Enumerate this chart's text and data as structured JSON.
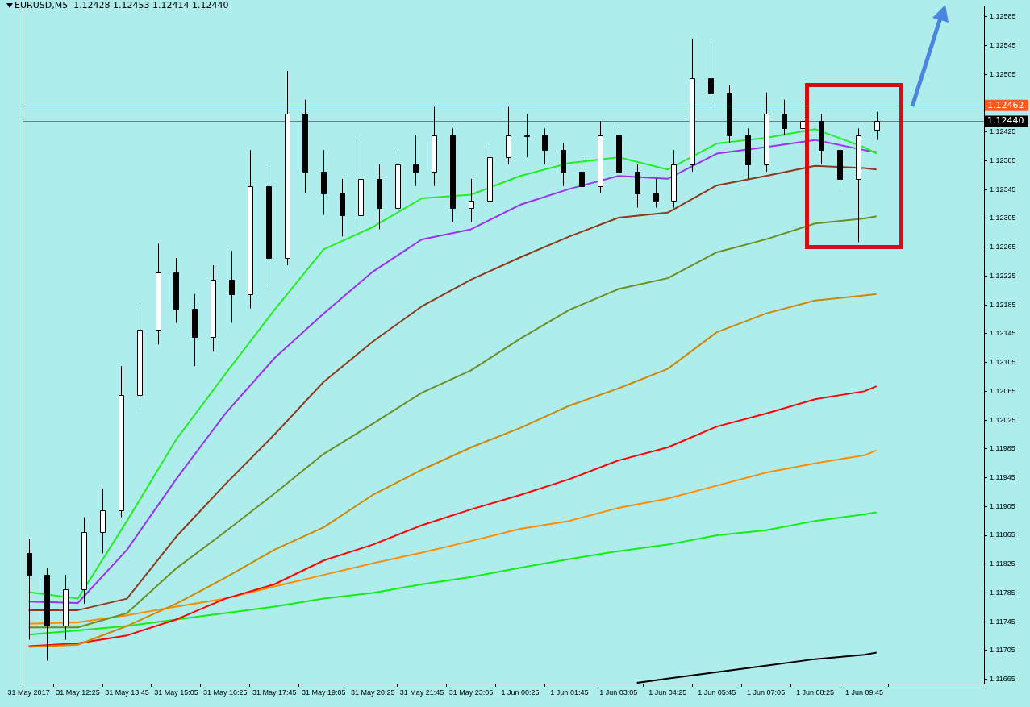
{
  "chart_data": {
    "type": "candlestick",
    "title": "EURUSD,M5  1.12428 1.12453 1.12414 1.12440",
    "x": [
      "2017-05-31T11:05",
      "2017-05-31T11:35",
      "2017-05-31T12:05",
      "2017-05-31T12:35",
      "2017-05-31T13:05",
      "2017-05-31T13:35",
      "2017-05-31T14:05",
      "2017-05-31T14:35",
      "2017-05-31T15:05",
      "2017-05-31T15:35",
      "2017-05-31T16:05",
      "2017-05-31T16:35",
      "2017-05-31T17:05",
      "2017-05-31T17:35",
      "2017-05-31T18:05",
      "2017-05-31T18:35",
      "2017-05-31T19:05",
      "2017-05-31T19:35",
      "2017-05-31T20:05",
      "2017-05-31T20:35",
      "2017-05-31T21:05",
      "2017-05-31T21:35",
      "2017-05-31T22:05",
      "2017-05-31T22:35",
      "2017-05-31T23:05",
      "2017-05-31T23:35",
      "2017-06-01T00:05",
      "2017-06-01T00:35",
      "2017-06-01T01:05",
      "2017-06-01T01:35",
      "2017-06-01T02:05",
      "2017-06-01T02:35",
      "2017-06-01T03:05",
      "2017-06-01T03:35",
      "2017-06-01T04:05",
      "2017-06-01T04:35",
      "2017-06-01T05:05",
      "2017-06-01T05:35",
      "2017-06-01T06:05",
      "2017-06-01T06:35",
      "2017-06-01T07:05",
      "2017-06-01T07:35",
      "2017-06-01T08:05",
      "2017-06-01T08:35",
      "2017-06-01T09:05",
      "2017-06-01T09:35",
      "2017-06-01T10:05"
    ],
    "ohlc": [
      [
        1.1184,
        1.1186,
        1.1172,
        1.1181
      ],
      [
        1.1181,
        1.1182,
        1.11691,
        1.1174
      ],
      [
        1.1174,
        1.1181,
        1.1172,
        1.1179
      ],
      [
        1.1179,
        1.1189,
        1.1177,
        1.1187
      ],
      [
        1.1187,
        1.1193,
        1.1184,
        1.119
      ],
      [
        1.119,
        1.121,
        1.1189,
        1.1206
      ],
      [
        1.1206,
        1.1218,
        1.1204,
        1.1215
      ],
      [
        1.1215,
        1.1227,
        1.1213,
        1.1223
      ],
      [
        1.1223,
        1.1225,
        1.1216,
        1.1218
      ],
      [
        1.1218,
        1.122,
        1.121,
        1.1214
      ],
      [
        1.1214,
        1.1224,
        1.1212,
        1.1222
      ],
      [
        1.1222,
        1.1226,
        1.1216,
        1.122
      ],
      [
        1.122,
        1.124,
        1.1218,
        1.1235
      ],
      [
        1.1235,
        1.1238,
        1.12211,
        1.1225
      ],
      [
        1.1225,
        1.1251,
        1.1224,
        1.1245
      ],
      [
        1.1245,
        1.1247,
        1.1234,
        1.1237
      ],
      [
        1.1237,
        1.124,
        1.1231,
        1.1234
      ],
      [
        1.1234,
        1.1236,
        1.1228,
        1.1231
      ],
      [
        1.1231,
        1.12415,
        1.1229,
        1.1236
      ],
      [
        1.1236,
        1.1238,
        1.1229,
        1.1232
      ],
      [
        1.1232,
        1.124,
        1.1231,
        1.1238
      ],
      [
        1.1238,
        1.1242,
        1.1235,
        1.1237
      ],
      [
        1.1237,
        1.1246,
        1.1235,
        1.1242
      ],
      [
        1.1242,
        1.1243,
        1.123,
        1.1232
      ],
      [
        1.1232,
        1.1236,
        1.123,
        1.1233
      ],
      [
        1.1233,
        1.1241,
        1.1232,
        1.1239
      ],
      [
        1.1239,
        1.1246,
        1.1238,
        1.1242
      ],
      [
        1.1242,
        1.1245,
        1.1239,
        1.1242
      ],
      [
        1.1242,
        1.1243,
        1.1238,
        1.124
      ],
      [
        1.124,
        1.1241,
        1.1235,
        1.1237
      ],
      [
        1.1237,
        1.1239,
        1.1234,
        1.1235
      ],
      [
        1.1235,
        1.1244,
        1.1234,
        1.1242
      ],
      [
        1.1242,
        1.1243,
        1.1236,
        1.1237
      ],
      [
        1.1237,
        1.1238,
        1.1232,
        1.1234
      ],
      [
        1.1234,
        1.1236,
        1.1232,
        1.1233
      ],
      [
        1.1233,
        1.124,
        1.1232,
        1.1238
      ],
      [
        1.1238,
        1.12555,
        1.1237,
        1.125
      ],
      [
        1.125,
        1.1255,
        1.1246,
        1.1248
      ],
      [
        1.1248,
        1.1249,
        1.1241,
        1.1242
      ],
      [
        1.1242,
        1.1243,
        1.1236,
        1.1238
      ],
      [
        1.1238,
        1.1248,
        1.1237,
        1.1245
      ],
      [
        1.1245,
        1.1247,
        1.1242,
        1.1243
      ],
      [
        1.1243,
        1.1247,
        1.1242,
        1.1244
      ],
      [
        1.1244,
        1.1245,
        1.1238,
        1.124
      ],
      [
        1.124,
        1.1242,
        1.1234,
        1.1236
      ],
      [
        1.1236,
        1.1243,
        1.12272,
        1.1242
      ],
      [
        1.12428,
        1.12453,
        1.12414,
        1.1244
      ]
    ],
    "series": [
      {
        "type": "line",
        "color": "#22ee22",
        "x": [
          "2017-05-31T11:05",
          "2017-05-31T12:25",
          "2017-05-31T13:45",
          "2017-05-31T15:05",
          "2017-05-31T16:25",
          "2017-05-31T17:45",
          "2017-05-31T19:05",
          "2017-05-31T20:25",
          "2017-05-31T21:45",
          "2017-05-31T23:05",
          "2017-06-01T00:25",
          "2017-06-01T01:45",
          "2017-06-01T03:05",
          "2017-06-01T04:25",
          "2017-06-01T05:45",
          "2017-06-01T07:05",
          "2017-06-01T08:25",
          "2017-06-01T09:45",
          "2017-06-01T10:05"
        ],
        "values": [
          1.11786,
          1.11777,
          1.11885,
          1.11998,
          1.12089,
          1.12178,
          1.12262,
          1.12293,
          1.12333,
          1.12338,
          1.12364,
          1.12382,
          1.1239,
          1.12373,
          1.12409,
          1.12417,
          1.12429,
          1.12404,
          1.12395
        ]
      },
      {
        "type": "line",
        "color": "#9933ee",
        "x": [
          "2017-05-31T11:05",
          "2017-05-31T12:25",
          "2017-05-31T13:45",
          "2017-05-31T15:05",
          "2017-05-31T16:25",
          "2017-05-31T17:45",
          "2017-05-31T19:05",
          "2017-05-31T20:25",
          "2017-05-31T21:45",
          "2017-05-31T23:05",
          "2017-06-01T00:25",
          "2017-06-01T01:45",
          "2017-06-01T03:05",
          "2017-06-01T04:25",
          "2017-06-01T05:45",
          "2017-06-01T07:05",
          "2017-06-01T08:25",
          "2017-06-01T09:45",
          "2017-06-01T10:05"
        ],
        "values": [
          1.11773,
          1.11771,
          1.11845,
          1.11943,
          1.12034,
          1.12111,
          1.12173,
          1.12231,
          1.12276,
          1.1229,
          1.12324,
          1.12346,
          1.12364,
          1.1236,
          1.12395,
          1.12404,
          1.12414,
          1.124,
          1.12397
        ]
      },
      {
        "type": "line",
        "color": "#8b3a1a",
        "x": [
          "2017-05-31T11:05",
          "2017-05-31T12:25",
          "2017-05-31T13:45",
          "2017-05-31T15:05",
          "2017-05-31T16:25",
          "2017-05-31T17:45",
          "2017-05-31T19:05",
          "2017-05-31T20:25",
          "2017-05-31T21:45",
          "2017-05-31T23:05",
          "2017-06-01T00:25",
          "2017-06-01T01:45",
          "2017-06-01T03:05",
          "2017-06-01T04:25",
          "2017-06-01T05:45",
          "2017-06-01T07:05",
          "2017-06-01T08:25",
          "2017-06-01T09:45",
          "2017-06-01T10:05"
        ],
        "values": [
          1.11761,
          1.11761,
          1.11777,
          1.11863,
          1.11936,
          1.12005,
          1.12078,
          1.12134,
          1.12183,
          1.1222,
          1.12251,
          1.1228,
          1.12306,
          1.12313,
          1.12351,
          1.12364,
          1.12378,
          1.12375,
          1.12373
        ]
      },
      {
        "type": "line",
        "color": "#6b8e23",
        "x": [
          "2017-05-31T11:05",
          "2017-05-31T12:25",
          "2017-05-31T13:45",
          "2017-05-31T15:05",
          "2017-05-31T16:25",
          "2017-05-31T17:45",
          "2017-05-31T19:05",
          "2017-05-31T20:25",
          "2017-05-31T21:45",
          "2017-05-31T23:05",
          "2017-06-01T00:25",
          "2017-06-01T01:45",
          "2017-06-01T03:05",
          "2017-06-01T04:25",
          "2017-06-01T05:45",
          "2017-06-01T07:05",
          "2017-06-01T08:25",
          "2017-06-01T09:45",
          "2017-06-01T10:05"
        ],
        "values": [
          1.11737,
          1.11737,
          1.11757,
          1.11819,
          1.1187,
          1.11923,
          1.11978,
          1.1202,
          1.12063,
          1.12094,
          1.12138,
          1.12178,
          1.12207,
          1.12222,
          1.12258,
          1.12276,
          1.12298,
          1.12305,
          1.12308
        ]
      },
      {
        "type": "line",
        "color": "#cc8800",
        "x": [
          "2017-05-31T11:05",
          "2017-05-31T12:25",
          "2017-05-31T13:45",
          "2017-05-31T15:05",
          "2017-05-31T16:25",
          "2017-05-31T17:45",
          "2017-05-31T19:05",
          "2017-05-31T20:25",
          "2017-05-31T21:45",
          "2017-05-31T23:05",
          "2017-06-01T00:25",
          "2017-06-01T01:45",
          "2017-06-01T03:05",
          "2017-06-01T04:25",
          "2017-06-01T05:45",
          "2017-06-01T07:05",
          "2017-06-01T08:25",
          "2017-06-01T09:45",
          "2017-06-01T10:05"
        ],
        "values": [
          1.1171,
          1.11713,
          1.11739,
          1.1177,
          1.11806,
          1.11845,
          1.11876,
          1.11921,
          1.11956,
          1.11987,
          1.12014,
          1.12045,
          1.12069,
          1.12096,
          1.12147,
          1.12173,
          1.12191,
          1.12198,
          1.122
        ]
      },
      {
        "type": "line",
        "color": "#ff0000",
        "x": [
          "2017-05-31T11:05",
          "2017-05-31T12:25",
          "2017-05-31T13:45",
          "2017-05-31T15:05",
          "2017-05-31T16:25",
          "2017-05-31T17:45",
          "2017-05-31T19:05",
          "2017-05-31T20:25",
          "2017-05-31T21:45",
          "2017-05-31T23:05",
          "2017-06-01T00:25",
          "2017-06-01T01:45",
          "2017-06-01T03:05",
          "2017-06-01T04:25",
          "2017-06-01T05:45",
          "2017-06-01T07:05",
          "2017-06-01T08:25",
          "2017-06-01T09:45",
          "2017-06-01T10:05"
        ],
        "values": [
          1.11711,
          1.11715,
          1.11726,
          1.11748,
          1.11777,
          1.11797,
          1.1183,
          1.11852,
          1.11879,
          1.11901,
          1.11921,
          1.11943,
          1.11969,
          1.11987,
          1.12016,
          1.12034,
          1.12054,
          1.12065,
          1.12072
        ]
      },
      {
        "type": "line",
        "color": "#ff8c00",
        "x": [
          "2017-05-31T11:05",
          "2017-05-31T12:25",
          "2017-05-31T13:45",
          "2017-05-31T15:05",
          "2017-05-31T16:25",
          "2017-05-31T17:45",
          "2017-05-31T19:05",
          "2017-05-31T20:25",
          "2017-05-31T21:45",
          "2017-05-31T23:05",
          "2017-06-01T00:25",
          "2017-06-01T01:45",
          "2017-06-01T03:05",
          "2017-06-01T04:25",
          "2017-06-01T05:45",
          "2017-06-01T07:05",
          "2017-06-01T08:25",
          "2017-06-01T09:45",
          "2017-06-01T10:05"
        ],
        "values": [
          1.11742,
          1.11744,
          1.11754,
          1.11766,
          1.11777,
          1.11794,
          1.1181,
          1.11826,
          1.11841,
          1.11857,
          1.11874,
          1.11885,
          1.11903,
          1.11916,
          1.11934,
          1.11952,
          1.11965,
          1.11976,
          1.11983
        ]
      },
      {
        "type": "line",
        "color": "#11ee11",
        "x": [
          "2017-05-31T11:05",
          "2017-05-31T12:25",
          "2017-05-31T13:45",
          "2017-05-31T15:05",
          "2017-05-31T16:25",
          "2017-05-31T17:45",
          "2017-05-31T19:05",
          "2017-05-31T20:25",
          "2017-05-31T21:45",
          "2017-05-31T23:05",
          "2017-06-01T00:25",
          "2017-06-01T01:45",
          "2017-06-01T03:05",
          "2017-06-01T04:25",
          "2017-06-01T05:45",
          "2017-06-01T07:05",
          "2017-06-01T08:25",
          "2017-06-01T09:45",
          "2017-06-01T10:05"
        ],
        "values": [
          1.11727,
          1.11733,
          1.11739,
          1.11748,
          1.11757,
          1.11766,
          1.11777,
          1.11785,
          1.11797,
          1.11807,
          1.1182,
          1.11832,
          1.11843,
          1.11852,
          1.11865,
          1.11872,
          1.11885,
          1.11894,
          1.11897
        ]
      },
      {
        "type": "line",
        "color": "#000000",
        "x": [
          "2017-06-01T03:35",
          "2017-06-01T04:25",
          "2017-06-01T05:45",
          "2017-06-01T07:05",
          "2017-06-01T08:25",
          "2017-06-01T09:45",
          "2017-06-01T10:05"
        ],
        "values": [
          1.1166,
          1.11666,
          1.11675,
          1.11684,
          1.11693,
          1.11699,
          1.11702
        ]
      }
    ],
    "xlim": [
      "2017-05-31T10:55",
      "2017-06-01T13:00"
    ],
    "xticks": [
      {
        "value": "2017-05-31T11:05",
        "label": "31 May 2017"
      },
      {
        "value": "2017-05-31T12:25",
        "label": "31 May 12:25"
      },
      {
        "value": "2017-05-31T13:45",
        "label": "31 May 13:45"
      },
      {
        "value": "2017-05-31T15:05",
        "label": "31 May 15:05"
      },
      {
        "value": "2017-05-31T16:25",
        "label": "31 May 16:25"
      },
      {
        "value": "2017-05-31T17:45",
        "label": "31 May 17:45"
      },
      {
        "value": "2017-05-31T19:05",
        "label": "31 May 19:05"
      },
      {
        "value": "2017-05-31T20:25",
        "label": "31 May 20:25"
      },
      {
        "value": "2017-05-31T21:45",
        "label": "31 May 21:45"
      },
      {
        "value": "2017-05-31T23:05",
        "label": "31 May 23:05"
      },
      {
        "value": "2017-06-01T00:25",
        "label": "1 Jun 00:25"
      },
      {
        "value": "2017-06-01T01:45",
        "label": "1 Jun 01:45"
      },
      {
        "value": "2017-06-01T03:05",
        "label": "1 Jun 03:05"
      },
      {
        "value": "2017-06-01T04:25",
        "label": "1 Jun 04:25"
      },
      {
        "value": "2017-06-01T05:45",
        "label": "1 Jun 05:45"
      },
      {
        "value": "2017-06-01T07:05",
        "label": "1 Jun 07:05"
      },
      {
        "value": "2017-06-01T08:25",
        "label": "1 Jun 08:25"
      },
      {
        "value": "2017-06-01T09:45",
        "label": "1 Jun 09:45"
      }
    ],
    "ylim": [
      1.11659,
      1.12599
    ],
    "yticks": [
      1.11665,
      1.11705,
      1.11745,
      1.11785,
      1.11825,
      1.11865,
      1.11905,
      1.11945,
      1.11985,
      1.12025,
      1.12065,
      1.12105,
      1.12145,
      1.12185,
      1.12225,
      1.12265,
      1.12305,
      1.12345,
      1.12385,
      1.12425,
      {
        "value": 1.12465,
        "label": null
      },
      1.12505,
      1.12545,
      1.12585
    ],
    "ref_lines": [
      {
        "axis": "y",
        "value": 1.12462,
        "label": "1.12462",
        "color": "#ff5a1a"
      },
      {
        "axis": "y",
        "value": 1.1244,
        "label": "1.12440",
        "color": "#000000"
      }
    ]
  }
}
